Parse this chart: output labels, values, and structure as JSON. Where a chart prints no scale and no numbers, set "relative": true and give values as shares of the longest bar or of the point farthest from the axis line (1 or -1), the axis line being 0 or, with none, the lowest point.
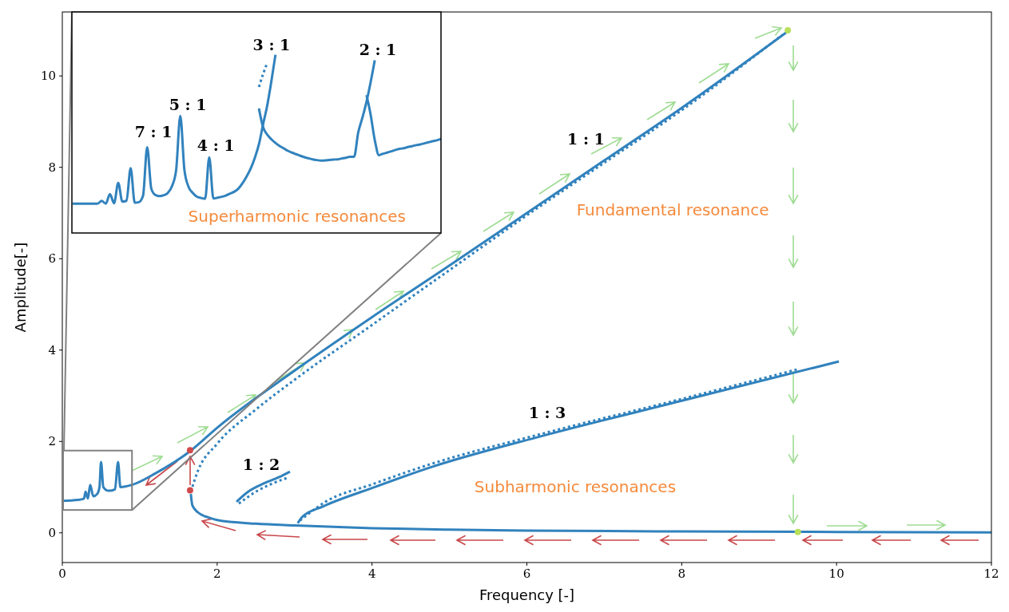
{
  "chart_data": [
    {
      "type": "line",
      "xlabel": "Frequency [-]",
      "ylabel": "Amplitude[-]",
      "xlim": [
        0,
        12
      ],
      "ylim": [
        -0.65,
        11.4
      ],
      "xticks": [
        0,
        2,
        4,
        6,
        8,
        10,
        12
      ],
      "yticks": [
        0,
        2,
        4,
        6,
        8,
        10
      ],
      "grid": false,
      "marker": "none",
      "series": [
        {
          "color": "#3182bd",
          "line_style": "solid",
          "x": [
            0,
            0.2,
            0.28,
            0.3,
            0.33,
            0.36,
            0.4,
            0.45,
            0.48,
            0.5,
            0.53,
            0.6,
            0.68,
            0.72,
            0.75,
            0.9,
            1.2,
            1.66,
            2,
            3,
            4,
            5,
            6,
            7,
            8,
            9.35
          ],
          "values": [
            0.7,
            0.72,
            0.75,
            0.9,
            0.75,
            1.05,
            0.8,
            0.85,
            1.0,
            1.55,
            1.0,
            0.92,
            0.95,
            1.55,
            1.0,
            1.05,
            1.3,
            1.8,
            2.3,
            3.55,
            4.72,
            5.85,
            7.0,
            8.15,
            9.3,
            10.95
          ]
        },
        {
          "color": "#3182bd",
          "line_style": "dotted",
          "x": [
            1.66,
            1.75,
            2,
            2.5,
            3,
            4,
            5,
            6,
            7,
            8,
            9.3
          ],
          "values": [
            0.9,
            1.35,
            1.95,
            2.7,
            3.35,
            4.55,
            5.75,
            6.95,
            8.1,
            9.25,
            10.9
          ]
        },
        {
          "color": "#3182bd",
          "line_style": "solid",
          "x": [
            1.66,
            1.68,
            1.75,
            1.9,
            2,
            2.5,
            3,
            4,
            5,
            6,
            8,
            10,
            12
          ],
          "values": [
            0.85,
            0.6,
            0.45,
            0.33,
            0.28,
            0.2,
            0.16,
            0.1,
            0.07,
            0.05,
            0.03,
            0.02,
            0.01
          ]
        },
        {
          "color": "#3182bd",
          "line_style": "solid",
          "x": [
            2.25,
            2.4,
            2.6,
            2.8,
            2.94
          ],
          "values": [
            0.68,
            0.9,
            1.08,
            1.22,
            1.34
          ]
        },
        {
          "color": "#3182bd",
          "line_style": "dotted",
          "x": [
            2.28,
            2.5,
            2.7,
            2.9
          ],
          "values": [
            0.64,
            0.9,
            1.07,
            1.2
          ]
        },
        {
          "color": "#3182bd",
          "line_style": "solid",
          "x": [
            3.04,
            3.1,
            3.37,
            4,
            4.75,
            6.13,
            8,
            10.03
          ],
          "values": [
            0.21,
            0.35,
            0.58,
            0.98,
            1.43,
            2.09,
            2.89,
            3.75
          ]
        },
        {
          "color": "#3182bd",
          "line_style": "dotted",
          "x": [
            3.07,
            3.4,
            4,
            4.75,
            6.13,
            8,
            9.5
          ],
          "values": [
            0.27,
            0.68,
            1.06,
            1.5,
            2.14,
            2.93,
            3.58
          ]
        },
        {
          "type": "scatter",
          "marker": "circle",
          "color": "#b8e05a",
          "x": [
            9.37,
            9.5
          ],
          "values": [
            11.0,
            0.02
          ]
        },
        {
          "type": "scatter",
          "marker": "circle",
          "color": "#cf4b4b",
          "x": [
            1.65,
            1.65
          ],
          "values": [
            1.81,
            0.93
          ]
        }
      ],
      "annotations": [
        "1 : 1",
        "1 : 2",
        "1 : 3",
        "Fundamental resonance",
        "Subharmonic resonances"
      ]
    },
    {
      "type": "line",
      "relative": true,
      "marker": "none",
      "categories": [
        null,
        null,
        null,
        null,
        null,
        null,
        null,
        null,
        null,
        null,
        null,
        null,
        null,
        null,
        null,
        null,
        null,
        null,
        null,
        null,
        null,
        null,
        null,
        null,
        null,
        null,
        null,
        null,
        null,
        null,
        null,
        null,
        null,
        null,
        null,
        null,
        null,
        null,
        null,
        null,
        null,
        null,
        null,
        null,
        null,
        null,
        null,
        null,
        null,
        null,
        null,
        null,
        null,
        null,
        null,
        null,
        null,
        null,
        null,
        null,
        null,
        null,
        null,
        null,
        null,
        null,
        null,
        null,
        null,
        null,
        null,
        null,
        null,
        null,
        null,
        null,
        null,
        null,
        null,
        null,
        null,
        null,
        null,
        null,
        null,
        null,
        null,
        null,
        null,
        null
      ],
      "series": [
        {
          "color": "#3182bd",
          "line_style": "solid",
          "values": [
            0.165,
            0.165,
            0.165,
            0.165,
            0.165,
            0.165,
            0.165,
            0.18,
            0.165,
            0.218,
            0.167,
            0.281,
            0.176,
            0.18,
            0.364,
            0.17,
            0.173,
            0.209,
            0.481,
            0.248,
            0.213,
            0.207,
            0.212,
            0.225,
            0.263,
            0.353,
            0.657,
            0.353,
            0.259,
            0.225,
            0.204,
            0.197,
            0.192,
            0.424,
            0.194,
            0.198,
            0.203,
            0.21,
            0.221,
            0.231,
            0.248,
            0.278,
            0.316,
            0.361,
            0.421,
            0.497,
            0.609,
            0.714,
            0.849,
            1.0,
            null,
            null,
            null,
            null,
            null,
            null,
            null,
            null,
            null,
            null,
            null,
            null,
            null,
            null,
            null,
            null,
            null,
            null,
            null,
            null,
            null,
            null,
            null,
            null,
            null,
            null,
            null,
            null,
            null,
            null,
            null,
            null,
            null,
            null,
            null,
            null,
            null,
            null,
            null,
            null
          ]
        },
        {
          "color": "#3182bd",
          "line_style": "solid",
          "values": [
            null,
            null,
            null,
            null,
            null,
            null,
            null,
            null,
            null,
            null,
            null,
            null,
            null,
            null,
            null,
            null,
            null,
            null,
            null,
            null,
            null,
            null,
            null,
            null,
            null,
            null,
            null,
            null,
            null,
            null,
            null,
            null,
            null,
            null,
            null,
            null,
            null,
            null,
            null,
            null,
            null,
            null,
            null,
            null,
            null,
            0.699,
            0.594,
            0.552,
            0.526,
            0.505,
            0.488,
            0.475,
            0.461,
            0.451,
            0.442,
            0.433,
            0.425,
            0.419,
            0.413,
            0.409,
            0.406,
            0.407,
            0.41,
            0.412,
            0.413,
            0.418,
            0.422,
            0.428,
            0.428,
            0.564,
            0.646,
            0.736,
            0.846,
            0.969,
            null,
            null,
            null,
            null,
            null,
            null,
            null,
            null,
            null,
            null,
            null,
            null,
            null,
            null,
            null,
            null
          ]
        },
        {
          "color": "#3182bd",
          "line_style": "solid",
          "values": [
            null,
            null,
            null,
            null,
            null,
            null,
            null,
            null,
            null,
            null,
            null,
            null,
            null,
            null,
            null,
            null,
            null,
            null,
            null,
            null,
            null,
            null,
            null,
            null,
            null,
            null,
            null,
            null,
            null,
            null,
            null,
            null,
            null,
            null,
            null,
            null,
            null,
            null,
            null,
            null,
            null,
            null,
            null,
            null,
            null,
            null,
            null,
            null,
            null,
            null,
            null,
            null,
            null,
            null,
            null,
            null,
            null,
            null,
            null,
            null,
            null,
            null,
            null,
            null,
            null,
            null,
            null,
            null,
            null,
            null,
            null,
            0.774,
            0.664,
            0.521,
            0.437,
            0.445,
            0.451,
            0.458,
            0.466,
            0.472,
            0.476,
            0.482,
            0.487,
            0.493,
            0.497,
            0.503,
            0.509,
            0.515,
            0.52,
            0.527
          ]
        },
        {
          "color": "#3182bd",
          "line_style": "dotted",
          "values": [
            null,
            null,
            null,
            null,
            null,
            null,
            null,
            null,
            null,
            null,
            null,
            null,
            null,
            null,
            null,
            null,
            null,
            null,
            null,
            null,
            null,
            null,
            null,
            null,
            null,
            null,
            null,
            null,
            null,
            null,
            null,
            null,
            null,
            null,
            null,
            null,
            null,
            null,
            null,
            null,
            null,
            null,
            null,
            null,
            null,
            0.819,
            0.891,
            0.954,
            null,
            null,
            null,
            null,
            null,
            null,
            null,
            null,
            null,
            null,
            null,
            null,
            null,
            null,
            null,
            null,
            null,
            null,
            null,
            null,
            null,
            null,
            null,
            null,
            null,
            null,
            null,
            null,
            null,
            null,
            null,
            null,
            null,
            null,
            null,
            null,
            null,
            null,
            null,
            null,
            null,
            null
          ]
        }
      ],
      "annotations": [
        "3 : 1",
        "2 : 1",
        "5 : 1",
        "7 : 1",
        "4 : 1",
        "Superharmonic resonances"
      ]
    }
  ]
}
